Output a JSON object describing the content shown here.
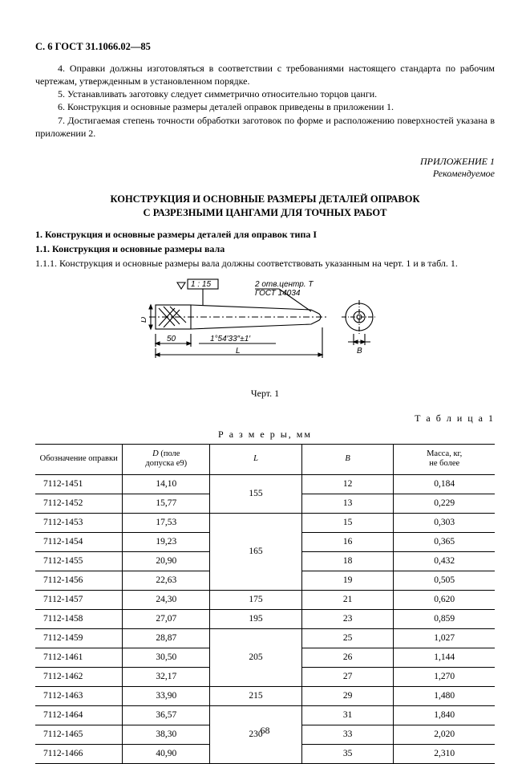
{
  "header": "С. 6 ГОСТ 31.1066.02—85",
  "paragraphs": [
    "4. Оправки должны изготовляться в соответствии с требованиями настоящего стандарта по рабочим чертежам, утвержденным в установленном порядке.",
    "5. Устанавливать заготовку следует симметрично относительно торцов цанги.",
    "6. Конструкция и основные размеры деталей оправок приведены в приложении 1.",
    "7. Достигаемая степень точности обработки заготовок по форме и расположению поверхностей указана в приложении 2."
  ],
  "appendix": {
    "line1": "ПРИЛОЖЕНИЕ 1",
    "line2": "Рекомендуемое"
  },
  "title": {
    "l1": "КОНСТРУКЦИЯ И ОСНОВНЫЕ РАЗМЕРЫ ДЕТАЛЕЙ ОПРАВОК",
    "l2": "С РАЗРЕЗНЫМИ ЦАНГАМИ ДЛЯ ТОЧНЫХ РАБОТ"
  },
  "section": {
    "h1": "1. Конструкция и основные размеры деталей для оправок типа I",
    "h2": "1.1. Конструкция и основные размеры вала",
    "body": "1.1.1. Конструкция и основные размеры вала должны соответствовать указанным на черт. 1 и в табл. 1."
  },
  "drawing": {
    "tol_box": "1 : 15",
    "note1": "2 отв.центр. T",
    "note2": "ГОСТ 14034",
    "dimD": "D",
    "dim50": "50",
    "taper": "1°54′33″±1′",
    "dimL": "L",
    "dimB": "B",
    "caption": "Черт. 1",
    "stroke": "#000000",
    "bg": "#ffffff"
  },
  "table_label": "Т а б л и ц а 1",
  "dim_label": "Р а з м е р ы,  мм",
  "table": {
    "columns": [
      "Обозначение оправки",
      "D (поле допуска e9)",
      "L",
      "B",
      "Масса, кг, не более"
    ],
    "col_widths_pct": [
      19,
      19,
      20,
      20,
      22
    ],
    "groups": [
      {
        "L": "155",
        "rows": [
          {
            "code": "7112-1451",
            "D": "14,10",
            "B": "12",
            "M": "0,184"
          },
          {
            "code": "7112-1452",
            "D": "15,77",
            "B": "13",
            "M": "0,229"
          }
        ]
      },
      {
        "L": "165",
        "rows": [
          {
            "code": "7112-1453",
            "D": "17,53",
            "B": "15",
            "M": "0,303"
          },
          {
            "code": "7112-1454",
            "D": "19,23",
            "B": "16",
            "M": "0,365"
          },
          {
            "code": "7112-1455",
            "D": "20,90",
            "B": "18",
            "M": "0,432"
          },
          {
            "code": "7112-1456",
            "D": "22,63",
            "B": "19",
            "M": "0,505"
          }
        ]
      },
      {
        "L": "175",
        "rows": [
          {
            "code": "7112-1457",
            "D": "24,30",
            "B": "21",
            "M": "0,620"
          }
        ]
      },
      {
        "L": "195",
        "rows": [
          {
            "code": "7112-1458",
            "D": "27,07",
            "B": "23",
            "M": "0,859"
          }
        ]
      },
      {
        "L": "205",
        "rows": [
          {
            "code": "7112-1459",
            "D": "28,87",
            "B": "25",
            "M": "1,027"
          },
          {
            "code": "7112-1461",
            "D": "30,50",
            "B": "26",
            "M": "1,144"
          },
          {
            "code": "7112-1462",
            "D": "32,17",
            "B": "27",
            "M": "1,270"
          }
        ]
      },
      {
        "L": "215",
        "rows": [
          {
            "code": "7112-1463",
            "D": "33,90",
            "B": "29",
            "M": "1,480"
          }
        ]
      },
      {
        "L": "230",
        "rows": [
          {
            "code": "7112-1464",
            "D": "36,57",
            "B": "31",
            "M": "1,840"
          },
          {
            "code": "7112-1465",
            "D": "38,30",
            "B": "33",
            "M": "2,020"
          },
          {
            "code": "7112-1466",
            "D": "40,90",
            "B": "35",
            "M": "2,310"
          }
        ]
      }
    ]
  },
  "page_number": "68"
}
